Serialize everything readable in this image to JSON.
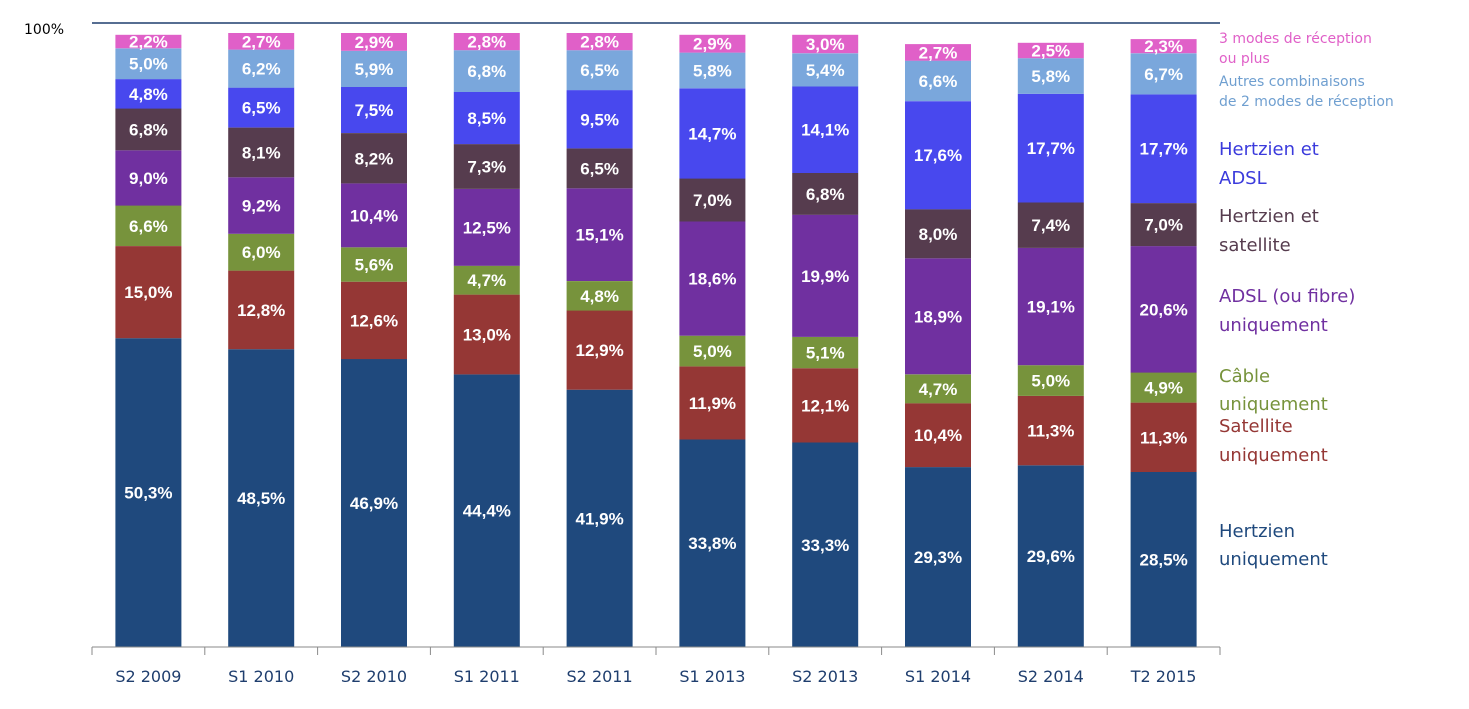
{
  "chart_data": {
    "type": "stacked-bar",
    "ylim": [
      0,
      100
    ],
    "y_top_label": "100%",
    "grid": false,
    "legend_position": "right",
    "categories": [
      "S2 2009",
      "S1 2010",
      "S2 2010",
      "S1 2011",
      "S2 2011",
      "S1 2013",
      "S2 2013",
      "S1 2014",
      "S2 2014",
      "T2 2015"
    ],
    "series": [
      {
        "key": "hertzien",
        "color": "#1f497d",
        "values": [
          50.3,
          48.5,
          46.9,
          44.4,
          41.9,
          33.8,
          33.3,
          29.3,
          29.6,
          28.5
        ],
        "labels": [
          "50,3%",
          "48,5%",
          "46,9%",
          "44,4%",
          "41,9%",
          "33,8%",
          "33,3%",
          "29,3%",
          "29,6%",
          "28,5%"
        ]
      },
      {
        "key": "satellite",
        "color": "#953735",
        "values": [
          15.0,
          12.8,
          12.6,
          13.0,
          12.9,
          11.9,
          12.1,
          10.4,
          11.3,
          11.3
        ],
        "labels": [
          "15,0%",
          "12,8%",
          "12,6%",
          "13,0%",
          "12,9%",
          "11,9%",
          "12,1%",
          "10,4%",
          "11,3%",
          "11,3%"
        ]
      },
      {
        "key": "cable",
        "color": "#77933c",
        "values": [
          6.6,
          6.0,
          5.6,
          4.7,
          4.8,
          5.0,
          5.1,
          4.7,
          5.0,
          4.9
        ],
        "labels": [
          "6,6%",
          "6,0%",
          "5,6%",
          "4,7%",
          "4,8%",
          "5,0%",
          "5,1%",
          "4,7%",
          "5,0%",
          "4,9%"
        ]
      },
      {
        "key": "adsl",
        "color": "#7030a0",
        "values": [
          9.0,
          9.2,
          10.4,
          12.5,
          15.1,
          18.6,
          19.9,
          18.9,
          19.1,
          20.6
        ],
        "labels": [
          "9,0%",
          "9,2%",
          "10,4%",
          "12,5%",
          "15,1%",
          "18,6%",
          "19,9%",
          "18,9%",
          "19,1%",
          "20,6%"
        ]
      },
      {
        "key": "hertz_sat",
        "color": "#563c4e",
        "values": [
          6.8,
          8.1,
          8.2,
          7.3,
          6.5,
          7.0,
          6.8,
          8.0,
          7.4,
          7.0
        ],
        "labels": [
          "6,8%",
          "8,1%",
          "8,2%",
          "7,3%",
          "6,5%",
          "7,0%",
          "6,8%",
          "8,0%",
          "7,4%",
          "7,0%"
        ]
      },
      {
        "key": "hertz_adsl",
        "color": "#4848ee",
        "values": [
          4.8,
          6.5,
          7.5,
          8.5,
          9.5,
          14.7,
          14.1,
          17.6,
          17.7,
          17.7
        ],
        "labels": [
          "4,8%",
          "6,5%",
          "7,5%",
          "8,5%",
          "9,5%",
          "14,7%",
          "14,1%",
          "17,6%",
          "17,7%",
          "17,7%"
        ]
      },
      {
        "key": "autres",
        "color": "#7aa7dc",
        "values": [
          5.0,
          6.2,
          5.9,
          6.8,
          6.5,
          5.8,
          5.4,
          6.6,
          5.8,
          6.7
        ],
        "labels": [
          "5,0%",
          "6,2%",
          "5,9%",
          "6,8%",
          "6,5%",
          "5,8%",
          "5,4%",
          "6,6%",
          "5,8%",
          "6,7%"
        ]
      },
      {
        "key": "trois_modes",
        "color": "#e060c8",
        "values": [
          2.2,
          2.7,
          2.9,
          2.8,
          2.8,
          2.9,
          3.0,
          2.7,
          2.5,
          2.3
        ],
        "labels": [
          "2,2%",
          "2,7%",
          "2,9%",
          "2,8%",
          "2,8%",
          "2,9%",
          "3,0%",
          "2,7%",
          "2,5%",
          "2,3%"
        ]
      }
    ],
    "legend": [
      {
        "key": "trois_modes",
        "lines": [
          "3 modes de réception",
          "ou plus"
        ],
        "color": "#e060c8"
      },
      {
        "key": "autres",
        "lines": [
          "Autres combinaisons",
          "de 2 modes de réception"
        ],
        "color": "#6f9fd0"
      },
      {
        "key": "hertz_adsl",
        "lines": [
          "Hertzien et",
          "ADSL"
        ],
        "color": "#3b3bdc"
      },
      {
        "key": "hertz_sat",
        "lines": [
          "Hertzien et",
          "satellite"
        ],
        "color": "#563c4e"
      },
      {
        "key": "adsl",
        "lines": [
          "ADSL (ou fibre)",
          "uniquement"
        ],
        "color": "#7030a0"
      },
      {
        "key": "cable",
        "lines": [
          "Câble",
          "uniquement"
        ],
        "color": "#77933c"
      },
      {
        "key": "satellite",
        "lines": [
          "Satellite",
          "uniquement"
        ],
        "color": "#953735"
      },
      {
        "key": "hertzien",
        "lines": [
          "Hertzien",
          "uniquement"
        ],
        "color": "#1f497d"
      }
    ]
  }
}
